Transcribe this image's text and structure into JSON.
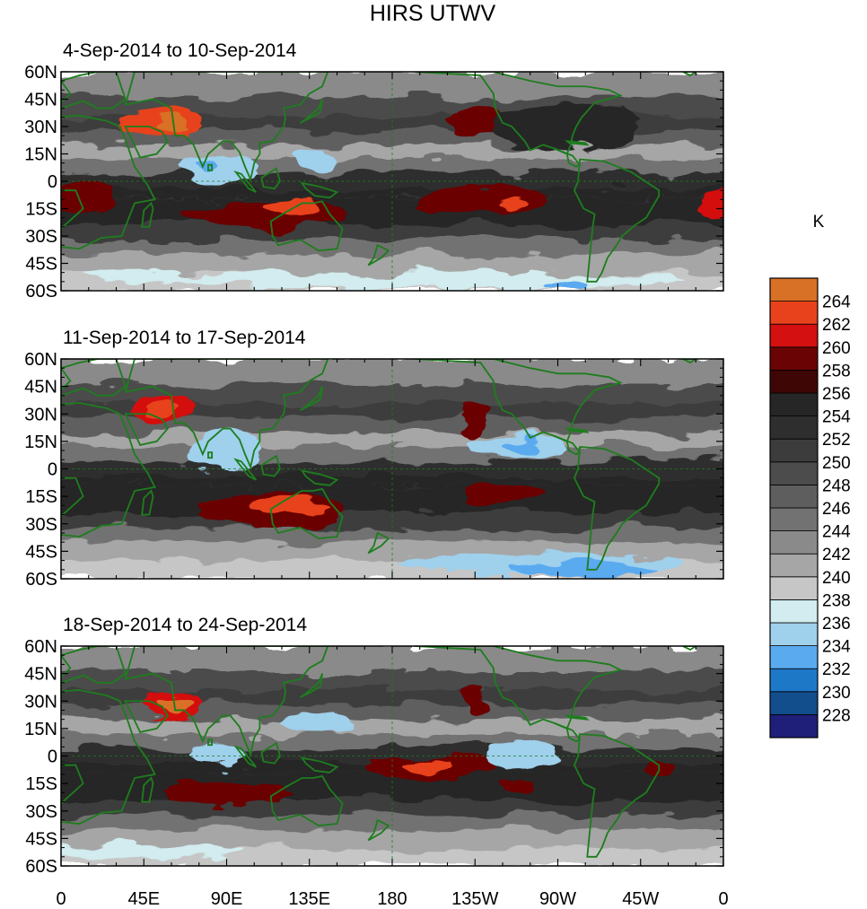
{
  "chart_data": {
    "type": "heatmap",
    "title": "HIRS UTWV",
    "units": "K",
    "lat_ticks": [
      "60N",
      "45N",
      "30N",
      "15N",
      "0",
      "15S",
      "30S",
      "45S",
      "60S"
    ],
    "lon_ticks": [
      "0",
      "45E",
      "90E",
      "135E",
      "180",
      "135W",
      "90W",
      "45W",
      "0"
    ],
    "lat_range": [
      -60,
      60
    ],
    "lon_range": [
      0,
      360
    ],
    "colorbar": {
      "levels": [
        228,
        230,
        232,
        234,
        236,
        238,
        240,
        242,
        244,
        246,
        248,
        250,
        252,
        254,
        256,
        258,
        260,
        262,
        264
      ],
      "colors": [
        "#1f1f7a",
        "#124e8c",
        "#1e78c8",
        "#5aaaf0",
        "#9fd0ec",
        "#d2ecef",
        "#c6c6c6",
        "#a6a6a6",
        "#8a8a8a",
        "#727272",
        "#5e5e5e",
        "#4c4c4c",
        "#3c3c3c",
        "#2e2e2e",
        "#262626",
        "#3f0606",
        "#6a0404",
        "#d41010",
        "#e8421c",
        "#d87026"
      ]
    },
    "panels": [
      {
        "label": "4-Sep-2014 to 10-Sep-2014",
        "features": [
          {
            "lon": 55,
            "lat": 32,
            "rx": 22,
            "ry": 7,
            "level": 262
          },
          {
            "lon": 60,
            "lat": 31,
            "rx": 8,
            "ry": 4,
            "level": 264
          },
          {
            "lon": 12,
            "lat": -10,
            "rx": 18,
            "ry": 9,
            "level": 258
          },
          {
            "lon": 110,
            "lat": -18,
            "rx": 45,
            "ry": 8,
            "level": 258
          },
          {
            "lon": 125,
            "lat": -14,
            "rx": 14,
            "ry": 5,
            "level": 262
          },
          {
            "lon": 230,
            "lat": -10,
            "rx": 35,
            "ry": 8,
            "level": 258
          },
          {
            "lon": 245,
            "lat": -13,
            "rx": 9,
            "ry": 3,
            "level": 262
          },
          {
            "lon": 355,
            "lat": -14,
            "rx": 10,
            "ry": 7,
            "level": 260
          },
          {
            "lon": 225,
            "lat": 33,
            "rx": 14,
            "ry": 8,
            "level": 258
          },
          {
            "lon": 275,
            "lat": 30,
            "rx": 40,
            "ry": 12,
            "level": 254
          },
          {
            "lon": 85,
            "lat": 7,
            "rx": 22,
            "ry": 9,
            "level": 234
          },
          {
            "lon": 80,
            "lat": 8,
            "rx": 7,
            "ry": 4,
            "level": 232
          },
          {
            "lon": 140,
            "lat": 13,
            "rx": 12,
            "ry": 6,
            "level": 234
          },
          {
            "lon": 200,
            "lat": -54,
            "rx": 140,
            "ry": 5,
            "level": 236
          },
          {
            "lon": 275,
            "lat": -57,
            "rx": 12,
            "ry": 3,
            "level": 232
          },
          {
            "lon": 40,
            "lat": -52,
            "rx": 30,
            "ry": 4,
            "level": 236
          }
        ]
      },
      {
        "label": "11-Sep-2014 to 17-Sep-2014",
        "features": [
          {
            "lon": 55,
            "lat": 33,
            "rx": 18,
            "ry": 8,
            "level": 260
          },
          {
            "lon": 55,
            "lat": 33,
            "rx": 10,
            "ry": 5,
            "level": 262
          },
          {
            "lon": 115,
            "lat": -22,
            "rx": 42,
            "ry": 10,
            "level": 258
          },
          {
            "lon": 125,
            "lat": -20,
            "rx": 24,
            "ry": 5,
            "level": 262
          },
          {
            "lon": 240,
            "lat": -14,
            "rx": 22,
            "ry": 5,
            "level": 258
          },
          {
            "lon": 225,
            "lat": 27,
            "rx": 7,
            "ry": 10,
            "level": 258
          },
          {
            "lon": 90,
            "lat": 10,
            "rx": 20,
            "ry": 12,
            "level": 234
          },
          {
            "lon": 248,
            "lat": 12,
            "rx": 28,
            "ry": 7,
            "level": 234
          },
          {
            "lon": 250,
            "lat": 12,
            "rx": 9,
            "ry": 4,
            "level": 232
          },
          {
            "lon": 260,
            "lat": -52,
            "rx": 80,
            "ry": 6,
            "level": 234
          },
          {
            "lon": 285,
            "lat": -55,
            "rx": 40,
            "ry": 4,
            "level": 232
          }
        ]
      },
      {
        "label": "18-Sep-2014 to 24-Sep-2014",
        "features": [
          {
            "lon": 60,
            "lat": 28,
            "rx": 17,
            "ry": 8,
            "level": 260
          },
          {
            "lon": 62,
            "lat": 28,
            "rx": 10,
            "ry": 5,
            "level": 264
          },
          {
            "lon": 90,
            "lat": -20,
            "rx": 35,
            "ry": 7,
            "level": 258
          },
          {
            "lon": 200,
            "lat": -6,
            "rx": 35,
            "ry": 7,
            "level": 258
          },
          {
            "lon": 200,
            "lat": -4,
            "rx": 14,
            "ry": 4,
            "level": 262
          },
          {
            "lon": 225,
            "lat": 30,
            "rx": 6,
            "ry": 8,
            "level": 258
          },
          {
            "lon": 250,
            "lat": -17,
            "rx": 10,
            "ry": 3,
            "level": 258
          },
          {
            "lon": 325,
            "lat": -8,
            "rx": 8,
            "ry": 5,
            "level": 258
          },
          {
            "lon": 85,
            "lat": 0,
            "rx": 16,
            "ry": 7,
            "level": 234
          },
          {
            "lon": 140,
            "lat": 18,
            "rx": 18,
            "ry": 6,
            "level": 234
          },
          {
            "lon": 250,
            "lat": 0,
            "rx": 20,
            "ry": 7,
            "level": 234
          },
          {
            "lon": 40,
            "lat": -52,
            "rx": 60,
            "ry": 4,
            "level": 236
          }
        ]
      }
    ]
  }
}
